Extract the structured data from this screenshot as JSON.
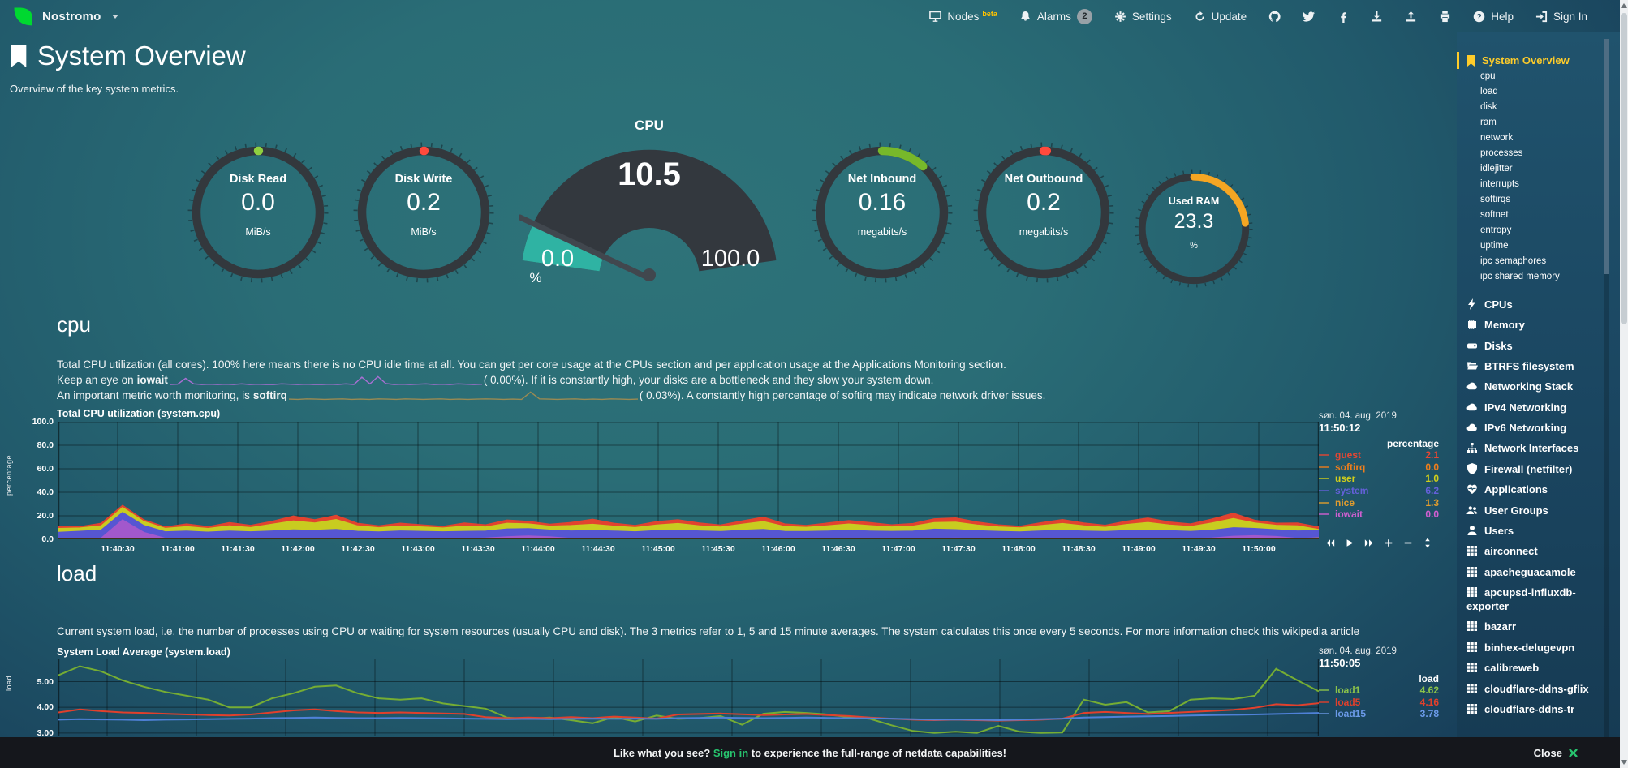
{
  "topbar": {
    "hostname": "Nostromo",
    "nodes": "Nodes",
    "nodes_beta": "beta",
    "alarms": "Alarms",
    "alarms_badge": "2",
    "settings": "Settings",
    "update": "Update",
    "help": "Help",
    "signin": "Sign In"
  },
  "header": {
    "title": "System Overview",
    "subtitle": "Overview of the key system metrics."
  },
  "gauges": {
    "disk_read": {
      "title": "Disk Read",
      "value": "0.0",
      "unit": "MiB/s",
      "color": "#8fd040",
      "fraction": 0.002
    },
    "disk_write": {
      "title": "Disk Write",
      "value": "0.2",
      "unit": "MiB/s",
      "color": "#ff4a3c",
      "fraction": 0.002
    },
    "net_inbound": {
      "title": "Net Inbound",
      "value": "0.16",
      "unit": "megabits/s",
      "color": "#77b82a",
      "fraction": 0.115
    },
    "net_outbound": {
      "title": "Net Outbound",
      "value": "0.2",
      "unit": "megabits/s",
      "color": "#ff4a3c",
      "fraction": 0.008
    },
    "used_ram": {
      "title": "Used RAM",
      "value": "23.3",
      "unit": "%",
      "color": "#f5a623",
      "fraction": 0.233
    },
    "cpu": {
      "title": "CPU",
      "value": "10.5",
      "min": "0.0",
      "max": "100.0",
      "unit": "%",
      "fraction": 0.105,
      "arc_color": "#2fb3a3",
      "bg": "#33383e",
      "needle": "#41474e"
    }
  },
  "cpu_section": {
    "heading": "cpu",
    "desc": "Total CPU utilization (all cores). 100% here means there is no CPU idle time at all. You can get per core usage at the CPUs section and per application usage at the Applications Monitoring section.",
    "iowait_prefix": "Keep an eye on",
    "iowait_word": "iowait",
    "iowait_suffix": "(    0.00%). If it is constantly high, your disks are a bottleneck and they slow your system down.",
    "softirq_prefix": "An important metric worth monitoring, is",
    "softirq_word": "softirq",
    "softirq_suffix": "(    0.03%). A constantly high percentage of softirq may indicate network driver issues."
  },
  "load_section": {
    "heading": "load",
    "desc": "Current system load, i.e. the number of processes using CPU or waiting for system resources (usually CPU and disk). The 3 metrics refer to 1, 5 and 15 minute averages. The system calculates this once every 5 seconds. For more information check this wikipedia article"
  },
  "sparklines": {
    "iowait": {
      "color": "#a96fd4",
      "values": [
        0,
        0.1,
        2.2,
        0.2,
        0,
        0.1,
        0,
        0.1,
        0,
        0.2,
        0,
        0.1,
        0,
        0,
        0.2,
        0.1,
        0,
        0.1,
        0,
        0,
        0.1,
        0,
        0.2,
        0,
        2.6,
        0.2,
        2.8,
        0.3,
        0,
        0.1,
        0,
        0.1,
        0.2,
        0,
        0.1,
        0,
        0.2,
        0.1,
        0,
        0.1
      ]
    },
    "softirq": {
      "color": "#9b8a52",
      "values": [
        0.3,
        0.2,
        0.4,
        0.3,
        0.2,
        0.3,
        0.4,
        0.2,
        0.3,
        0.2,
        0.4,
        0.3,
        0.2,
        0.4,
        0.3,
        0.2,
        0.3,
        0.4,
        0.2,
        0.3,
        0.2,
        0.3,
        0.4,
        0.3,
        0.2,
        0.3,
        0.2,
        3.2,
        0.4,
        0.3,
        0.2,
        0.3,
        0.4,
        0.2,
        0.3,
        0.2,
        0.4,
        0.3,
        0.2,
        0.3
      ]
    }
  },
  "chart_data": {
    "cpu": {
      "type": "area",
      "stacked": true,
      "title": "Total CPU utilization (system.cpu)",
      "date": "søn. 04. aug. 2019",
      "time": "11:50:12",
      "units": "percentage",
      "ylabel": "percentage",
      "ylim": [
        0,
        100
      ],
      "yticks": [
        {
          "v": 100,
          "label": "100.0"
        },
        {
          "v": 80,
          "label": "80.0"
        },
        {
          "v": 60,
          "label": "60.0"
        },
        {
          "v": 40,
          "label": "40.0"
        },
        {
          "v": 20,
          "label": "20.0"
        },
        {
          "v": 0,
          "label": "0.0"
        }
      ],
      "xticks": [
        "11:40:30",
        "11:41:00",
        "11:41:30",
        "11:42:00",
        "11:42:30",
        "11:43:00",
        "11:43:30",
        "11:44:00",
        "11:44:30",
        "11:45:00",
        "11:45:30",
        "11:46:00",
        "11:46:30",
        "11:47:00",
        "11:47:30",
        "11:48:00",
        "11:48:30",
        "11:49:00",
        "11:49:30",
        "11:50:00"
      ],
      "legend": [
        {
          "name": "guest",
          "value": "2.1",
          "color": "#e64632"
        },
        {
          "name": "softirq",
          "value": "0.0",
          "color": "#ef7e1b"
        },
        {
          "name": "user",
          "value": "1.0",
          "color": "#d1cf1a"
        },
        {
          "name": "system",
          "value": "6.2",
          "color": "#6460d8"
        },
        {
          "name": "nice",
          "value": "1.3",
          "color": "#e09c2e"
        },
        {
          "name": "iowait",
          "value": "0.0",
          "color": "#d15fd1"
        }
      ],
      "series": [
        {
          "name": "nice",
          "color": "#e0902e",
          "values": [
            0.6,
            0.5,
            0.7,
            0.6,
            0.5,
            0.6,
            0.7,
            0.5,
            0.6,
            0.6,
            0.5,
            0.6,
            0.7,
            0.6,
            0.5,
            0.6,
            0.6,
            0.5,
            0.7,
            0.6,
            0.6,
            0.5,
            0.6,
            0.7,
            0.5,
            0.6,
            0.6,
            0.5,
            0.6,
            0.7,
            0.5,
            0.6,
            0.6,
            0.7,
            0.5,
            0.6,
            0.6,
            0.5,
            0.7,
            0.6,
            0.5,
            0.6,
            0.7,
            0.6,
            0.5,
            0.6,
            0.6,
            0.7,
            0.5,
            0.6,
            0.6,
            0.5,
            0.7,
            0.6,
            0.6,
            0.5,
            0.6,
            0.7,
            0.5,
            1.3
          ]
        },
        {
          "name": "iowait",
          "color": "#a258cc",
          "values": [
            0,
            0.2,
            0.4,
            16,
            5.5,
            0.4,
            0.2,
            0,
            0.2,
            0,
            0.2,
            0.3,
            0.2,
            0.4,
            0.2,
            0,
            0.2,
            0.3,
            0.2,
            0,
            0.6,
            1.8,
            2.4,
            1.5,
            0.4,
            0.2,
            0.3,
            0.2,
            0.4,
            0.2,
            0.3,
            0.2,
            0.4,
            0.3,
            0.2,
            0.4,
            0.2,
            0.3,
            0.2,
            0.4,
            0.2,
            0.3,
            0.4,
            0.2,
            0.3,
            0.2,
            0.4,
            0.2,
            0.3,
            0.2,
            0.4,
            0.2,
            0.3,
            0.2,
            0.6,
            2.2,
            2.6,
            1.8,
            0.4,
            0
          ]
        },
        {
          "name": "system",
          "color": "#5656d2",
          "values": [
            5.5,
            6.2,
            6.8,
            6.4,
            5.8,
            5.5,
            6.1,
            5.7,
            6.3,
            5.9,
            6.5,
            7.2,
            6.8,
            7.5,
            6.2,
            5.8,
            6.4,
            6.0,
            5.6,
            6.2,
            5.8,
            6.6,
            6.1,
            5.7,
            6.3,
            6.8,
            6.2,
            5.8,
            6.5,
            7.0,
            6.4,
            5.9,
            6.7,
            7.4,
            6.1,
            5.7,
            6.3,
            6.9,
            6.2,
            5.8,
            6.4,
            7.8,
            7.2,
            6.6,
            6.0,
            5.6,
            6.2,
            6.8,
            6.3,
            5.9,
            6.5,
            7.1,
            6.4,
            6.0,
            6.6,
            7.2,
            6.1,
            5.7,
            6.3,
            6.2
          ]
        },
        {
          "name": "user",
          "color": "#c8cc20",
          "values": [
            3.2,
            2.8,
            3.6,
            4.2,
            3.4,
            2.9,
            3.8,
            3.1,
            4.4,
            3.6,
            5.8,
            7.6,
            6.2,
            8.4,
            4.6,
            3.5,
            4.2,
            3.8,
            3.2,
            4.5,
            3.6,
            4.8,
            4.1,
            3.4,
            4.6,
            5.2,
            4.2,
            3.6,
            4.8,
            5.6,
            4.4,
            3.8,
            5.2,
            6.8,
            4.2,
            3.6,
            4.4,
            5.4,
            4.6,
            3.8,
            4.2,
            5.6,
            6.4,
            4.8,
            3.8,
            3.4,
            4.6,
            5.8,
            4.4,
            3.6,
            5.2,
            6.6,
            4.8,
            4.2,
            6.2,
            7.8,
            4.6,
            3.8,
            4.4,
            1.0
          ]
        },
        {
          "name": "guest",
          "color": "#e2432f",
          "values": [
            1.6,
            1.2,
            2.2,
            1.8,
            1.4,
            1.2,
            2.4,
            1.6,
            2.8,
            1.9,
            2.4,
            4.2,
            2.8,
            3.6,
            2.2,
            1.6,
            2.4,
            1.8,
            1.4,
            2.6,
            1.8,
            2.8,
            2.2,
            1.6,
            2.6,
            4.4,
            2.4,
            1.8,
            2.8,
            3.2,
            2.4,
            1.8,
            2.8,
            3.8,
            2.2,
            1.6,
            2.4,
            3.0,
            2.6,
            1.8,
            2.2,
            3.2,
            3.6,
            2.6,
            1.8,
            1.4,
            2.4,
            3.4,
            2.4,
            1.8,
            2.8,
            3.8,
            2.6,
            2.2,
            3.4,
            4.6,
            2.4,
            1.8,
            2.4,
            2.1
          ]
        }
      ]
    },
    "load": {
      "type": "line",
      "stacked": false,
      "title": "System Load Average (system.load)",
      "date": "søn. 04. aug. 2019",
      "time": "11:50:05",
      "units": "load",
      "ylabel": "load",
      "ylim": [
        2.9,
        5.9
      ],
      "yticks": [
        {
          "v": 5,
          "label": "5.00"
        },
        {
          "v": 4,
          "label": "4.00"
        },
        {
          "v": 3,
          "label": "3.00"
        }
      ],
      "xticks": [],
      "legend": [
        {
          "name": "load1",
          "value": "4.62",
          "color": "#8bc34a"
        },
        {
          "name": "load5",
          "value": "4.16",
          "color": "#e1402c"
        },
        {
          "name": "load15",
          "value": "3.78",
          "color": "#6b9ae8"
        }
      ],
      "series": [
        {
          "name": "load1",
          "color": "#76ad33",
          "values": [
            5.25,
            5.6,
            5.4,
            5.05,
            4.8,
            4.6,
            4.45,
            4.3,
            4.0,
            4.0,
            4.35,
            4.55,
            4.8,
            4.85,
            4.55,
            4.35,
            4.3,
            4.35,
            4.15,
            4.05,
            3.95,
            3.6,
            3.55,
            3.6,
            3.5,
            3.38,
            3.62,
            3.45,
            3.68,
            3.55,
            3.58,
            3.66,
            3.32,
            3.75,
            3.82,
            3.78,
            3.72,
            3.62,
            3.55,
            3.3,
            3.08,
            3.0,
            3.05,
            3.0,
            3.28,
            3.05,
            3.0,
            3.02,
            4.3,
            4.1,
            4.2,
            3.8,
            3.85,
            4.3,
            4.35,
            4.32,
            4.45,
            5.5,
            5.05,
            4.62
          ]
        },
        {
          "name": "load5",
          "color": "#e1402c",
          "values": [
            3.8,
            3.92,
            3.85,
            3.8,
            3.78,
            3.75,
            3.72,
            3.7,
            3.68,
            3.72,
            3.8,
            3.88,
            3.92,
            3.85,
            3.8,
            3.78,
            3.8,
            3.78,
            3.76,
            3.74,
            3.62,
            3.58,
            3.6,
            3.58,
            3.62,
            3.58,
            3.64,
            3.6,
            3.56,
            3.72,
            3.74,
            3.76,
            3.73,
            3.7,
            3.72,
            3.74,
            3.7,
            3.66,
            3.6,
            3.56,
            3.52,
            3.5,
            3.52,
            3.5,
            3.48,
            3.5,
            3.52,
            3.56,
            3.78,
            3.82,
            3.78,
            3.74,
            3.78,
            3.82,
            3.86,
            3.9,
            3.98,
            4.12,
            4.08,
            4.16
          ]
        },
        {
          "name": "load15",
          "color": "#4f81d8",
          "values": [
            3.52,
            3.54,
            3.53,
            3.52,
            3.5,
            3.52,
            3.53,
            3.54,
            3.55,
            3.56,
            3.58,
            3.59,
            3.6,
            3.59,
            3.58,
            3.58,
            3.59,
            3.58,
            3.57,
            3.56,
            3.55,
            3.54,
            3.55,
            3.54,
            3.55,
            3.56,
            3.55,
            3.56,
            3.55,
            3.58,
            3.59,
            3.6,
            3.59,
            3.58,
            3.59,
            3.6,
            3.59,
            3.58,
            3.57,
            3.56,
            3.54,
            3.52,
            3.53,
            3.52,
            3.5,
            3.52,
            3.54,
            3.56,
            3.6,
            3.62,
            3.64,
            3.65,
            3.66,
            3.68,
            3.7,
            3.71,
            3.72,
            3.74,
            3.76,
            3.78
          ]
        }
      ]
    }
  },
  "sidebar": {
    "active": "System Overview",
    "subitems": [
      "cpu",
      "load",
      "disk",
      "ram",
      "network",
      "processes",
      "idlejitter",
      "interrupts",
      "softirqs",
      "softnet",
      "entropy",
      "uptime",
      "ipc semaphores",
      "ipc shared memory"
    ],
    "sections": [
      {
        "icon": "bolt",
        "label": "CPUs"
      },
      {
        "icon": "memory",
        "label": "Memory"
      },
      {
        "icon": "hdd",
        "label": "Disks"
      },
      {
        "icon": "folder-open",
        "label": "BTRFS filesystem"
      },
      {
        "icon": "cloud",
        "label": "Networking Stack"
      },
      {
        "icon": "cloud",
        "label": "IPv4 Networking"
      },
      {
        "icon": "cloud",
        "label": "IPv6 Networking"
      },
      {
        "icon": "sitemap",
        "label": "Network Interfaces"
      },
      {
        "icon": "shield",
        "label": "Firewall (netfilter)"
      },
      {
        "icon": "heartbeat",
        "label": "Applications"
      },
      {
        "icon": "users",
        "label": "User Groups"
      },
      {
        "icon": "user",
        "label": "Users"
      }
    ],
    "hosts": [
      {
        "icon": "grid",
        "label": "airconnect"
      },
      {
        "icon": "grid",
        "label": "apacheguacamole"
      },
      {
        "icon": "grid",
        "label": "apcupsd-influxdb-exporter"
      },
      {
        "icon": "grid",
        "label": "bazarr"
      },
      {
        "icon": "grid",
        "label": "binhex-delugevpn"
      },
      {
        "icon": "grid",
        "label": "calibreweb"
      },
      {
        "icon": "grid",
        "label": "cloudflare-ddns-gflix"
      },
      {
        "icon": "grid",
        "label": "cloudflare-ddns-tr"
      }
    ]
  },
  "bottom_bar": {
    "prefix": "Like what you see?",
    "signin": "Sign in",
    "suffix": "to experience the full-range of netdata capabilities!",
    "close": "Close"
  }
}
